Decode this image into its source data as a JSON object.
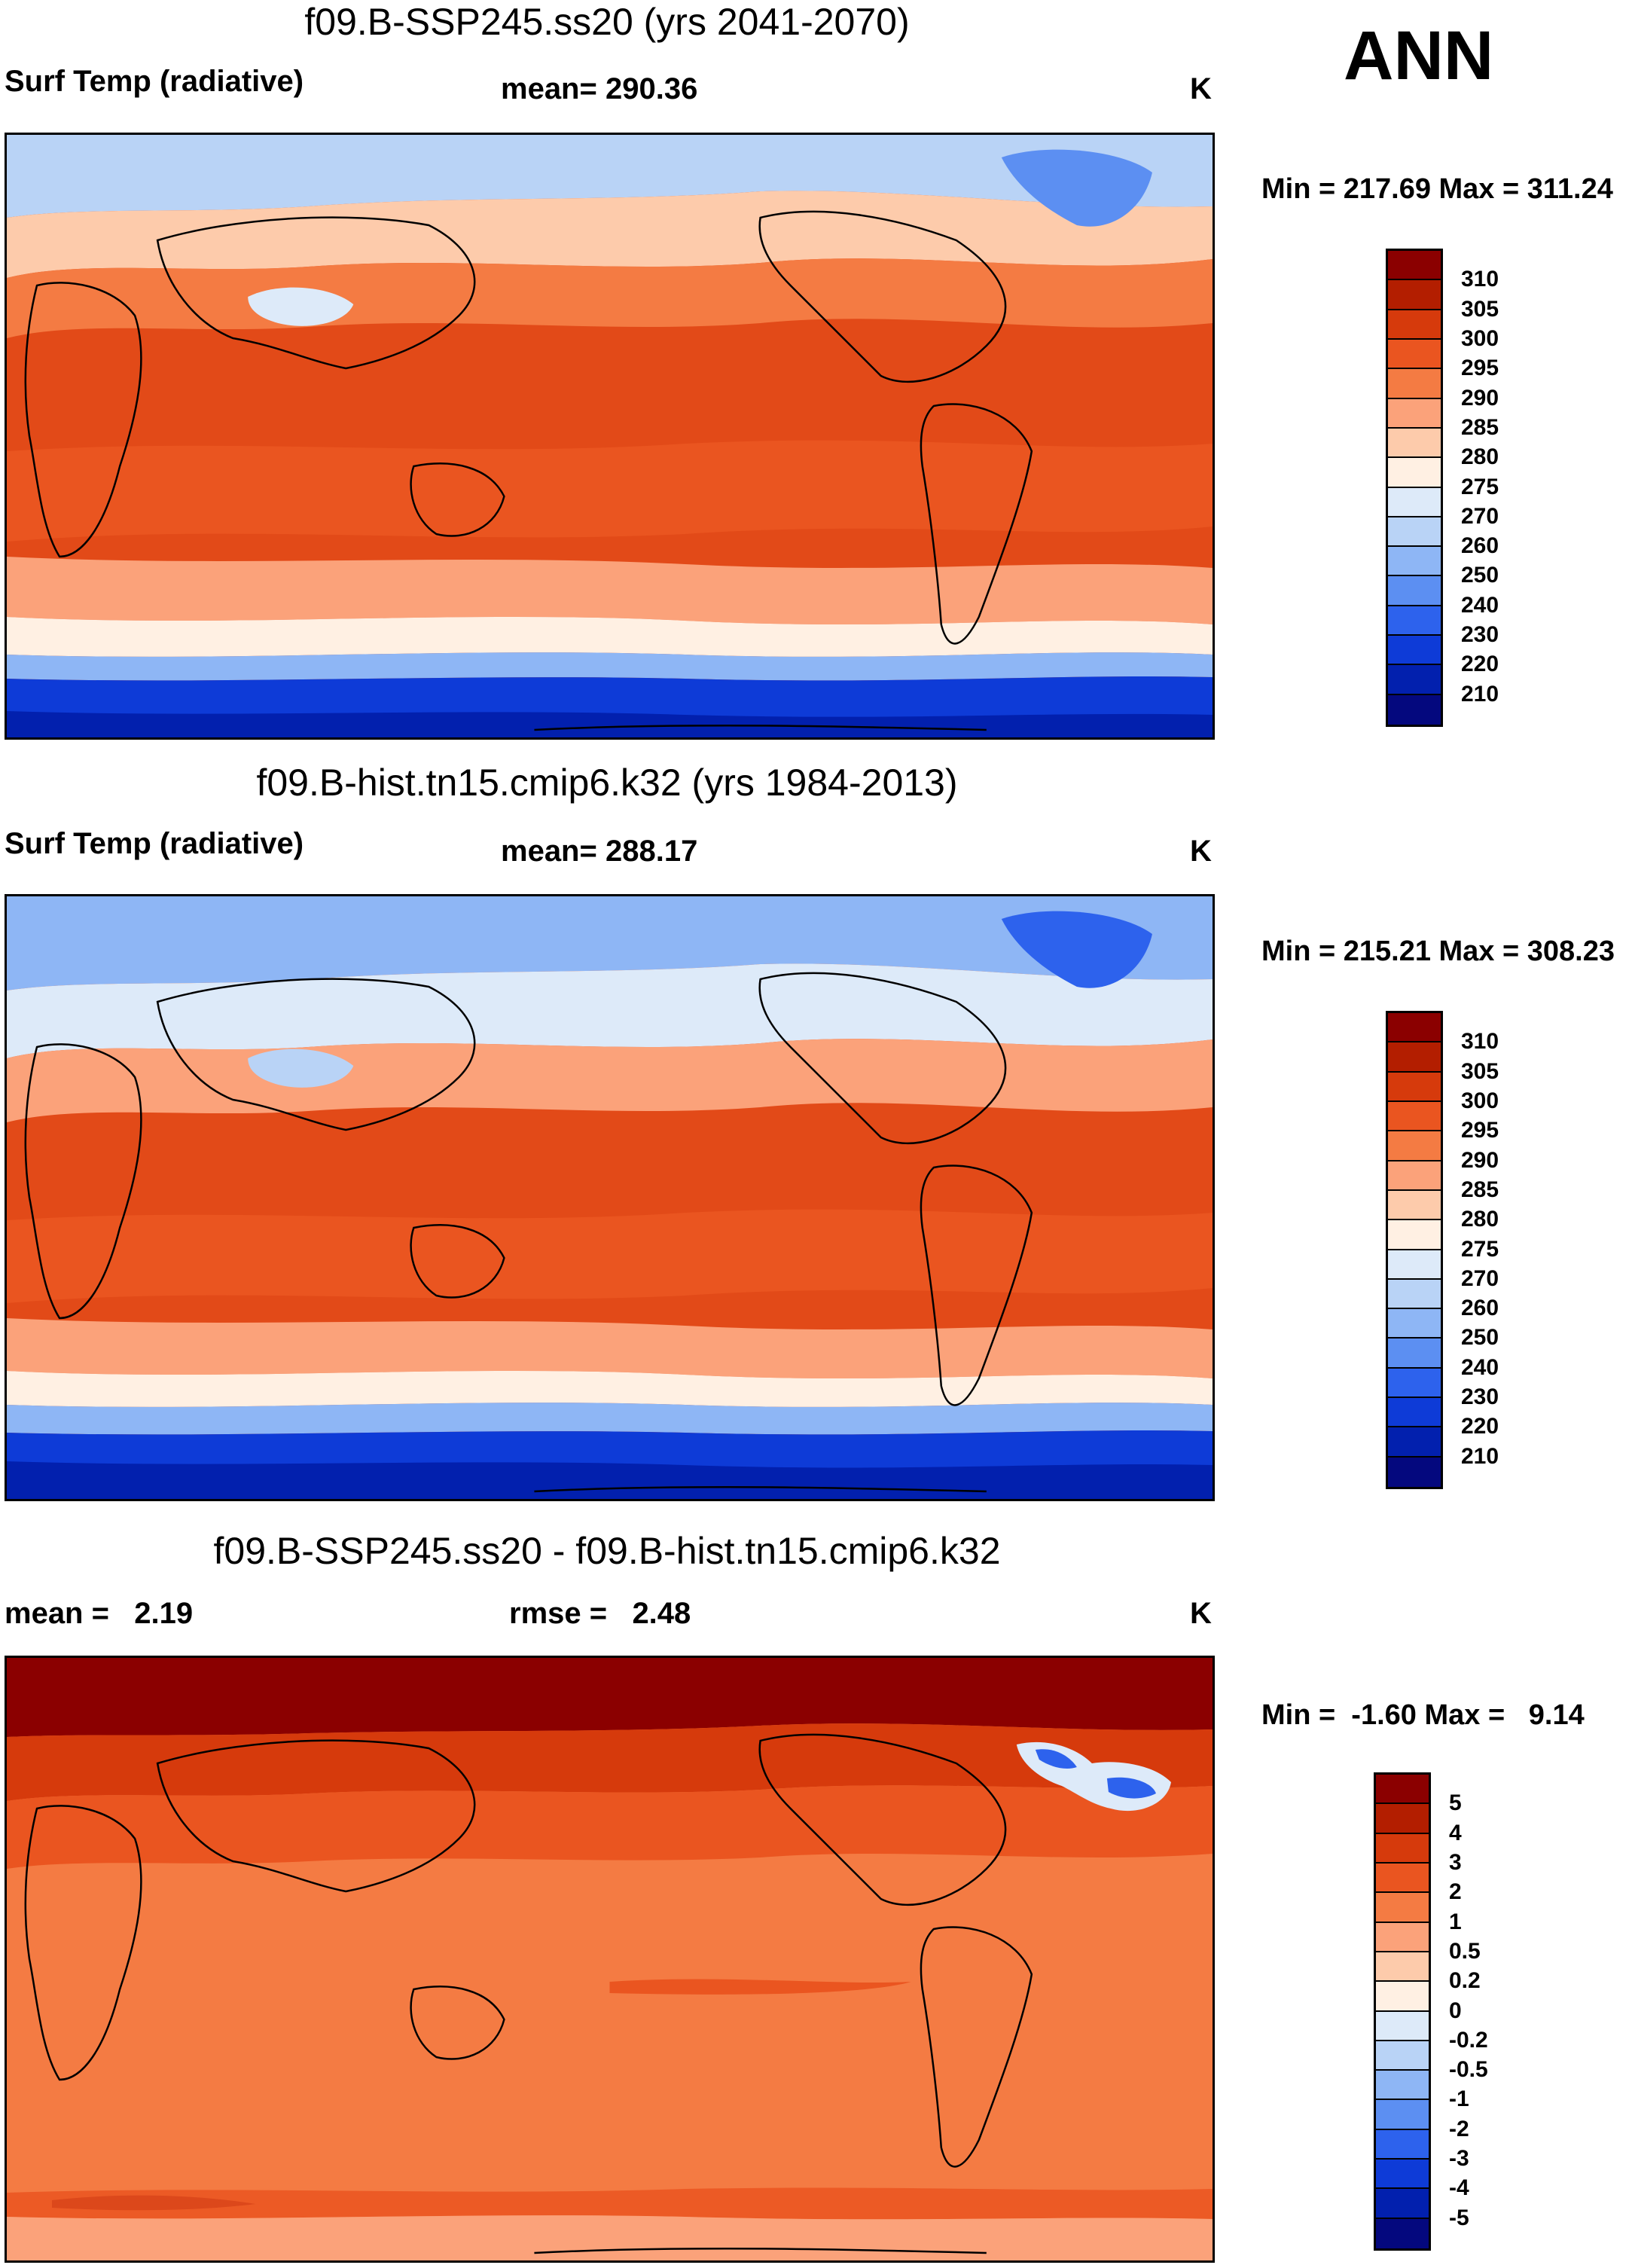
{
  "season": "ANN",
  "panels": [
    {
      "title": "f09.B-SSP245.ss20 (yrs 2041-2070)",
      "left_label": "Surf Temp (radiative)",
      "center_label": "mean= 290.36",
      "units": "K",
      "minmax": "Min = 217.69 Max = 311.24",
      "colorbar_labels": [
        "310",
        "305",
        "300",
        "295",
        "290",
        "285",
        "280",
        "275",
        "270",
        "260",
        "250",
        "240",
        "230",
        "220",
        "210"
      ],
      "colorbar_colors": [
        "#8b0000",
        "#b31e00",
        "#d63a0c",
        "#ea5520",
        "#f47b43",
        "#fba27a",
        "#fdcbab",
        "#fff0e3",
        "#ddeaf9",
        "#b9d3f6",
        "#8eb6f5",
        "#5c8ff2",
        "#2d62ed",
        "#0e3bd7",
        "#0220ae",
        "#04087e"
      ]
    },
    {
      "title": "f09.B-hist.tn15.cmip6.k32 (yrs 1984-2013)",
      "left_label": "Surf Temp (radiative)",
      "center_label": "mean= 288.17",
      "units": "K",
      "minmax": "Min = 215.21 Max = 308.23",
      "colorbar_labels": [
        "310",
        "305",
        "300",
        "295",
        "290",
        "285",
        "280",
        "275",
        "270",
        "260",
        "250",
        "240",
        "230",
        "220",
        "210"
      ],
      "colorbar_colors": [
        "#8b0000",
        "#b31e00",
        "#d63a0c",
        "#ea5520",
        "#f47b43",
        "#fba27a",
        "#fdcbab",
        "#fff0e3",
        "#ddeaf9",
        "#b9d3f6",
        "#8eb6f5",
        "#5c8ff2",
        "#2d62ed",
        "#0e3bd7",
        "#0220ae",
        "#04087e"
      ]
    },
    {
      "title": "f09.B-SSP245.ss20 - f09.B-hist.tn15.cmip6.k32",
      "left_label": "mean =   2.19",
      "center_label": "rmse =   2.48",
      "units": "K",
      "minmax": "Min =  -1.60 Max =   9.14",
      "colorbar_labels": [
        "5",
        "4",
        "3",
        "2",
        "1",
        "0.5",
        "0.2",
        "0",
        "-0.2",
        "-0.5",
        "-1",
        "-2",
        "-3",
        "-4",
        "-5"
      ],
      "colorbar_colors": [
        "#8b0000",
        "#b31e00",
        "#d63a0c",
        "#ea5520",
        "#f47b43",
        "#fba27a",
        "#fdcbab",
        "#fff0e3",
        "#ddeaf9",
        "#b9d3f6",
        "#8eb6f5",
        "#5c8ff2",
        "#2d62ed",
        "#0e3bd7",
        "#0220ae",
        "#04087e"
      ]
    }
  ]
}
